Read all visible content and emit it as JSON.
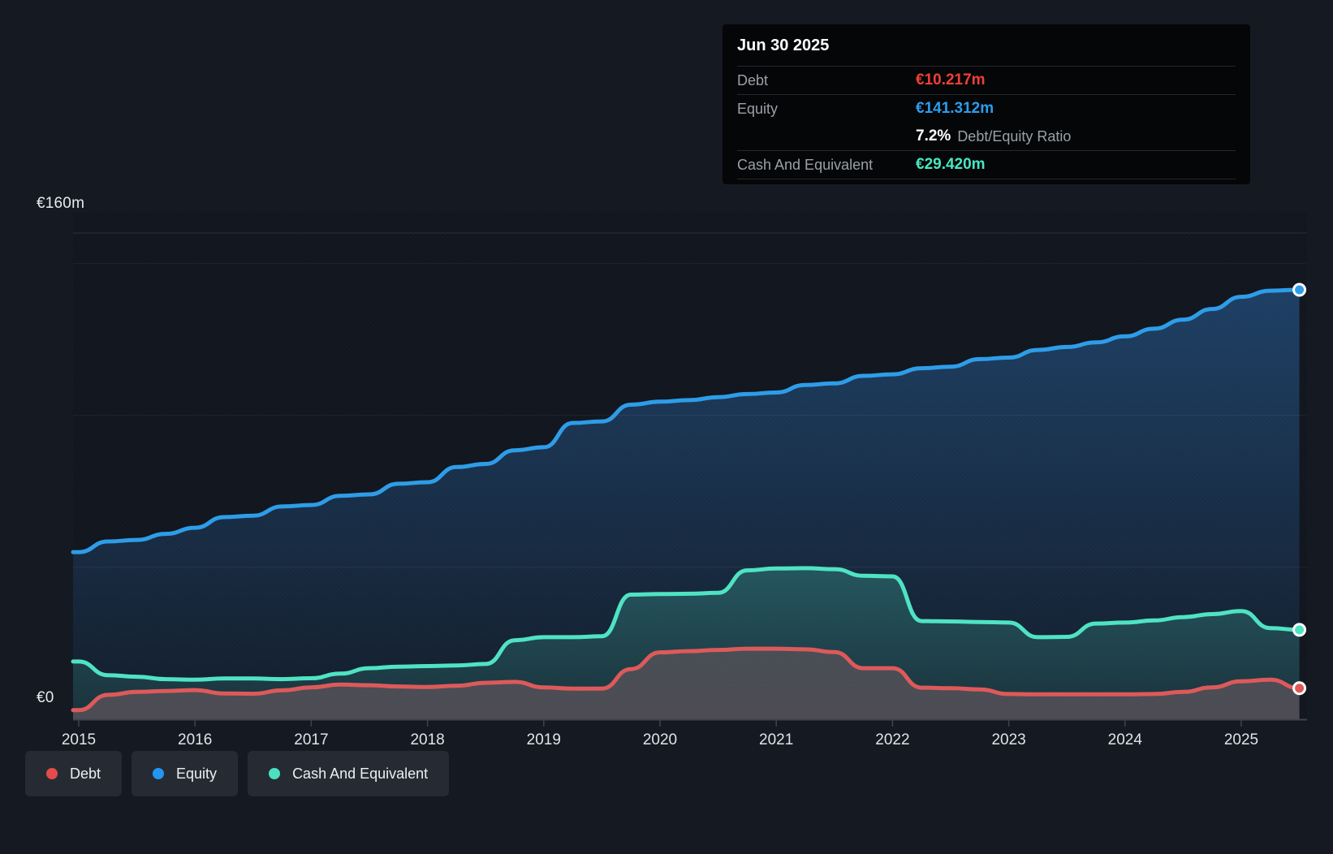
{
  "tooltip": {
    "date": "Jun 30 2025",
    "debt_label": "Debt",
    "debt_value": "€10.217m",
    "equity_label": "Equity",
    "equity_value": "€141.312m",
    "ratio_value": "7.2%",
    "ratio_label": "Debt/Equity Ratio",
    "cash_label": "Cash And Equivalent",
    "cash_value": "€29.420m",
    "debt_color": "#ef4036",
    "equity_color": "#2d9cec",
    "cash_color": "#47e7c3"
  },
  "legend": {
    "items": [
      {
        "label": "Debt",
        "color": "#e44b4b"
      },
      {
        "label": "Equity",
        "color": "#2196f3"
      },
      {
        "label": "Cash And Equivalent",
        "color": "#4ce0c0"
      }
    ]
  },
  "chart_data": {
    "type": "area",
    "title": "Debt to Equity history",
    "x_ticks": [
      "2015",
      "2016",
      "2017",
      "2018",
      "2019",
      "2020",
      "2021",
      "2022",
      "2023",
      "2024",
      "2025"
    ],
    "y_axis_labels": [
      "€160m",
      "€0"
    ],
    "y_unit": "€m",
    "ylim": [
      0,
      160
    ],
    "y_gridlines": [
      160,
      150,
      100,
      50
    ],
    "x_domain": [
      2015,
      2025.57
    ],
    "grid": true,
    "legend_position": "bottom-left",
    "end_markers": true,
    "x": [
      2015.0,
      2015.25,
      2015.5,
      2015.75,
      2016.0,
      2016.25,
      2016.5,
      2016.75,
      2017.0,
      2017.25,
      2017.5,
      2017.75,
      2018.0,
      2018.25,
      2018.5,
      2018.75,
      2019.0,
      2019.25,
      2019.5,
      2019.75,
      2020.0,
      2020.25,
      2020.5,
      2020.75,
      2021.0,
      2021.25,
      2021.5,
      2021.75,
      2022.0,
      2022.25,
      2022.5,
      2022.75,
      2023.0,
      2023.25,
      2023.5,
      2023.75,
      2024.0,
      2024.25,
      2024.5,
      2024.75,
      2025.0,
      2025.25,
      2025.5
    ],
    "series": [
      {
        "name": "Equity",
        "color": "#2e9de8",
        "fill_from": "rgba(42,105,170,0.50)",
        "fill_to": "rgba(42,105,170,0.08)",
        "values": [
          55,
          58.5,
          59,
          61,
          63,
          66.5,
          67,
          70,
          70.5,
          73.5,
          74,
          77.5,
          78,
          83,
          84,
          88.5,
          89.5,
          97.5,
          98,
          103.5,
          104.5,
          105,
          106,
          107,
          107.5,
          110,
          110.5,
          113,
          113.5,
          115.5,
          116,
          118.5,
          119,
          121.5,
          122.5,
          124,
          126,
          128.5,
          131.5,
          135,
          139,
          141,
          141.312
        ]
      },
      {
        "name": "Cash And Equivalent",
        "color": "#4fe3c3",
        "fill_from": "rgba(79,227,195,0.24)",
        "fill_to": "rgba(79,227,195,0.10)",
        "values": [
          19,
          14.5,
          14,
          13.2,
          13,
          13.4,
          13.4,
          13.2,
          13.5,
          15,
          16.8,
          17.3,
          17.5,
          17.7,
          18.2,
          26,
          27,
          27,
          27.3,
          41,
          41.2,
          41.3,
          41.6,
          49,
          49.6,
          49.7,
          49.4,
          47.2,
          47,
          32.3,
          32.2,
          32,
          31.8,
          27,
          27.1,
          31.5,
          31.8,
          32.5,
          33.6,
          34.6,
          35.6,
          30,
          29.42
        ]
      },
      {
        "name": "Debt",
        "color": "#dd5a5a",
        "fill_from": "rgba(221,120,120,0.22)",
        "fill_to": "rgba(225,150,162,0.26)",
        "values": [
          3,
          8,
          9,
          9.3,
          9.6,
          8.5,
          8.4,
          9.5,
          10.5,
          11.4,
          11.2,
          10.8,
          10.6,
          11,
          12,
          12.3,
          10.5,
          10.1,
          10.1,
          16.5,
          22,
          22.4,
          22.8,
          23.2,
          23.2,
          23,
          22.1,
          16.8,
          16.8,
          10.4,
          10.2,
          9.8,
          8.3,
          8.2,
          8.2,
          8.2,
          8.2,
          8.3,
          9,
          10.5,
          12.5,
          13,
          10.217
        ]
      }
    ]
  }
}
